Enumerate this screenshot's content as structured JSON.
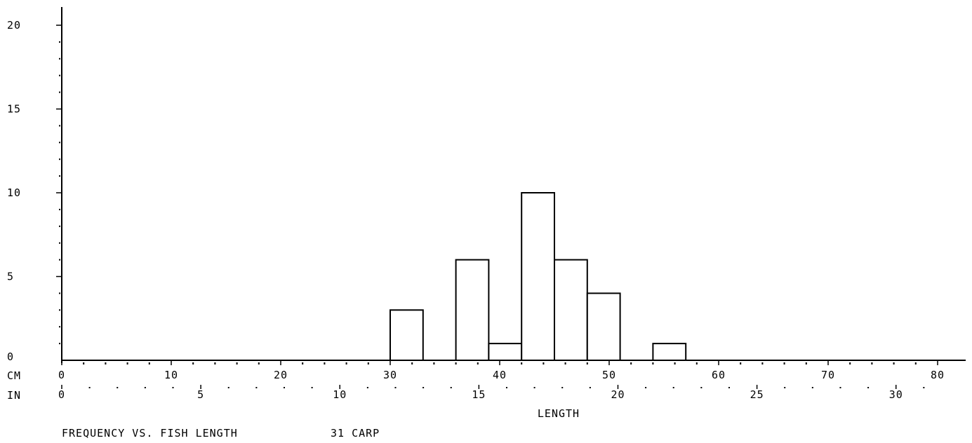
{
  "chart_data": {
    "type": "bar",
    "bin_width_cm": 3,
    "bins": [
      {
        "x_start_cm": 30,
        "x_end_cm": 33,
        "count": 3
      },
      {
        "x_start_cm": 36,
        "x_end_cm": 39,
        "count": 6
      },
      {
        "x_start_cm": 39,
        "x_end_cm": 42,
        "count": 1
      },
      {
        "x_start_cm": 42,
        "x_end_cm": 45,
        "count": 10
      },
      {
        "x_start_cm": 45,
        "x_end_cm": 48,
        "count": 6
      },
      {
        "x_start_cm": 48,
        "x_end_cm": 51,
        "count": 4
      },
      {
        "x_start_cm": 54,
        "x_end_cm": 57,
        "count": 1
      }
    ],
    "ylim": [
      0,
      20
    ],
    "y_ticks": [
      "0",
      "5",
      "10",
      "15",
      "20"
    ],
    "xlim_cm": [
      0,
      80
    ],
    "cm_axis": {
      "label": "CM",
      "ticks": [
        "0",
        "10",
        "20",
        "30",
        "40",
        "50",
        "60",
        "70",
        "80"
      ]
    },
    "in_axis": {
      "label": "IN",
      "ticks": [
        "0",
        "5",
        "10",
        "15",
        "20",
        "25",
        "30"
      ]
    },
    "xlabel": "LENGTH",
    "caption": "FREQUENCY VS. FISH LENGTH",
    "sample": "31 CARP",
    "grid": false
  }
}
